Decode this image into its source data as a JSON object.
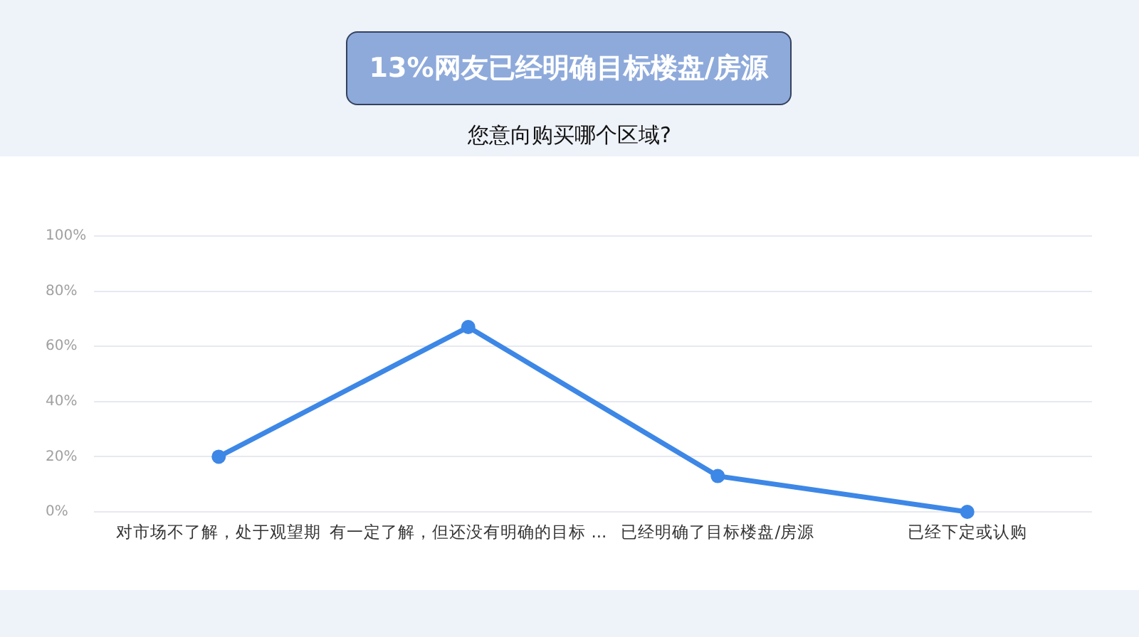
{
  "chart_data": {
    "type": "line",
    "title": "13%网友已经明确目标楼盘/房源",
    "subtitle": "您意向购买哪个区域?",
    "categories": [
      "对市场不了解，处于观望期",
      "有一定了解，但还没有明确的目标 ...",
      "已经明确了目标楼盘/房源",
      "已经下定或认购"
    ],
    "values": [
      20,
      67,
      13,
      0
    ],
    "color": "#3d87e6",
    "ylim": [
      0,
      100
    ],
    "yticks": [
      {
        "value": 0,
        "label": "0%"
      },
      {
        "value": 20,
        "label": "20%"
      },
      {
        "value": 40,
        "label": "40%"
      },
      {
        "value": 60,
        "label": "60%"
      },
      {
        "value": 80,
        "label": "80%"
      },
      {
        "value": 100,
        "label": "100%"
      }
    ],
    "grid": "y",
    "legend": false,
    "marker": "circle",
    "line_style": "solid"
  }
}
